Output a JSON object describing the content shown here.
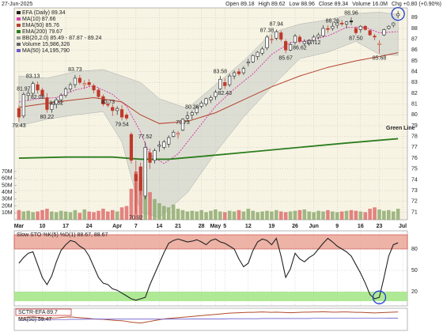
{
  "chart_data": {
    "type": "candlestick",
    "date": "27-Jun-2025",
    "header": [
      "Open 89.18",
      "High 89.62",
      "Low 88.96",
      "Close 89.34",
      "Volume 16.0M",
      "Chg +0.80 (+0.90%)"
    ],
    "legend": [
      "EFA (Daily) 89.34",
      "MA(10) 87.66",
      "EMA(50) 85.76",
      "EMA(200) 79.67",
      "BB(20,2.0) 85.49 - 87.87 - 89.24",
      "Volume 15,986,326",
      "MA(50) 14,195,790"
    ],
    "legend_colors": [
      "#222",
      "#d63fb0",
      "#b5422e",
      "#2e7d1f",
      "#999",
      "#666",
      "#6a5acd"
    ],
    "annotation": "Green Line",
    "ylim": [
      70.3,
      89.9
    ],
    "yticks": [
      71,
      72,
      73,
      74,
      75,
      76,
      77,
      78,
      79,
      80,
      81,
      82,
      83,
      84,
      85,
      86,
      87,
      88,
      89
    ],
    "xlim": [
      -1,
      83
    ],
    "xticks": [
      {
        "value": 0,
        "label": "Mar"
      },
      {
        "value": 5,
        "label": "10"
      },
      {
        "value": 10,
        "label": "17"
      },
      {
        "value": 15,
        "label": "24"
      },
      {
        "value": 21,
        "label": "Apr"
      },
      {
        "value": 25,
        "label": "7"
      },
      {
        "value": 30,
        "label": "14"
      },
      {
        "value": 34,
        "label": "21"
      },
      {
        "value": 39,
        "label": "28"
      },
      {
        "value": 42,
        "label": "May"
      },
      {
        "value": 44,
        "label": "5"
      },
      {
        "value": 49,
        "label": "12"
      },
      {
        "value": 54,
        "label": "19"
      },
      {
        "value": 59,
        "label": "26"
      },
      {
        "value": 63,
        "label": "Jun"
      },
      {
        "value": 68,
        "label": "9"
      },
      {
        "value": 73,
        "label": "16"
      },
      {
        "value": 77,
        "label": "23"
      },
      {
        "value": 82,
        "label": "Jul"
      }
    ],
    "up_color": "#222",
    "down_color": "#c0392b",
    "candles": [
      [
        80.6,
        80.9,
        79.4,
        79.8
      ],
      [
        79.9,
        82.1,
        79.7,
        81.9
      ],
      [
        81.8,
        82.3,
        81.3,
        82.0
      ],
      [
        82.0,
        83.1,
        81.8,
        82.9
      ],
      [
        82.8,
        83.1,
        82.0,
        82.3
      ],
      [
        82.3,
        82.5,
        81.5,
        81.8
      ],
      [
        81.6,
        82.0,
        80.2,
        80.5
      ],
      [
        80.5,
        81.2,
        80.2,
        81.0
      ],
      [
        81.0,
        81.6,
        80.6,
        81.4
      ],
      [
        81.4,
        82.0,
        81.0,
        81.8
      ],
      [
        81.8,
        82.6,
        81.6,
        82.4
      ],
      [
        82.4,
        83.0,
        82.1,
        82.8
      ],
      [
        82.8,
        83.7,
        82.5,
        83.4
      ],
      [
        83.4,
        83.7,
        82.8,
        83.0
      ],
      [
        82.8,
        83.2,
        82.4,
        82.9
      ],
      [
        83.0,
        83.3,
        82.6,
        82.8
      ],
      [
        82.7,
        82.9,
        82.0,
        82.3
      ],
      [
        82.3,
        82.5,
        81.5,
        81.7
      ],
      [
        81.7,
        81.9,
        80.8,
        81.0
      ],
      [
        81.0,
        81.3,
        80.7,
        80.9
      ],
      [
        80.7,
        81.0,
        79.9,
        80.4
      ],
      [
        80.4,
        80.8,
        80.0,
        80.6
      ],
      [
        80.5,
        80.9,
        79.5,
        79.8
      ],
      [
        80.0,
        80.2,
        79.5,
        79.7
      ],
      [
        78.2,
        78.4,
        75.5,
        75.8
      ],
      [
        74.5,
        75.8,
        70.9,
        73.9
      ],
      [
        75.2,
        75.6,
        72.6,
        73.0
      ],
      [
        72.5,
        77.5,
        72.2,
        77.0
      ],
      [
        76.5,
        76.9,
        75.0,
        75.6
      ],
      [
        75.8,
        76.9,
        75.5,
        76.7
      ],
      [
        77.1,
        77.6,
        76.6,
        77.2
      ],
      [
        77.0,
        77.7,
        76.8,
        77.5
      ],
      [
        77.3,
        78.1,
        77.0,
        77.9
      ],
      [
        78.0,
        78.6,
        77.9,
        78.4
      ],
      [
        78.2,
        78.5,
        77.8,
        78.3
      ],
      [
        78.6,
        79.7,
        78.5,
        79.6
      ],
      [
        79.7,
        80.3,
        79.4,
        79.9
      ],
      [
        80.0,
        80.4,
        79.6,
        80.2
      ],
      [
        80.2,
        80.8,
        80.0,
        80.7
      ],
      [
        80.8,
        81.3,
        80.6,
        81.1
      ],
      [
        81.0,
        81.6,
        80.8,
        81.5
      ],
      [
        81.4,
        81.8,
        81.1,
        81.6
      ],
      [
        81.7,
        82.3,
        81.4,
        82.1
      ],
      [
        82.4,
        83.6,
        82.3,
        83.3
      ],
      [
        83.0,
        83.4,
        82.4,
        82.7
      ],
      [
        82.8,
        83.8,
        82.6,
        83.6
      ],
      [
        83.6,
        84.1,
        83.3,
        83.9
      ],
      [
        84.0,
        84.3,
        83.6,
        83.8
      ],
      [
        83.9,
        84.5,
        83.7,
        84.3
      ],
      [
        84.8,
        85.2,
        84.5,
        84.9
      ],
      [
        84.9,
        85.6,
        84.8,
        85.5
      ],
      [
        85.4,
        85.9,
        85.1,
        85.8
      ],
      [
        85.7,
        86.3,
        85.5,
        86.1
      ],
      [
        86.2,
        87.4,
        86.0,
        87.2
      ],
      [
        87.0,
        87.4,
        86.6,
        87.0
      ],
      [
        87.1,
        87.9,
        86.9,
        87.7
      ],
      [
        87.6,
        87.8,
        86.8,
        87.0
      ],
      [
        86.8,
        87.0,
        85.7,
        86.0
      ],
      [
        86.0,
        86.7,
        85.9,
        86.5
      ],
      [
        86.7,
        87.5,
        86.5,
        87.3
      ],
      [
        87.2,
        87.4,
        86.6,
        86.8
      ],
      [
        86.6,
        87.0,
        86.4,
        86.8
      ],
      [
        86.6,
        87.0,
        86.4,
        86.9
      ],
      [
        86.9,
        87.4,
        86.6,
        87.2
      ],
      [
        87.2,
        87.6,
        87.0,
        87.4
      ],
      [
        87.3,
        88.3,
        87.2,
        88.0
      ],
      [
        88.0,
        88.3,
        87.6,
        87.9
      ],
      [
        88.0,
        88.5,
        87.8,
        88.2
      ],
      [
        88.3,
        88.7,
        88.0,
        88.5
      ],
      [
        88.5,
        88.8,
        88.2,
        88.4
      ],
      [
        88.4,
        88.7,
        88.0,
        88.6
      ],
      [
        88.7,
        89.0,
        88.3,
        88.6
      ],
      [
        88.0,
        88.2,
        87.4,
        87.6
      ],
      [
        87.9,
        88.3,
        87.6,
        88.2
      ],
      [
        88.2,
        88.3,
        87.8,
        87.9
      ],
      [
        87.8,
        87.9,
        87.3,
        87.4
      ],
      [
        87.3,
        87.5,
        86.9,
        87.2
      ],
      [
        86.5,
        86.9,
        85.7,
        86.6
      ],
      [
        87.4,
        88.0,
        87.3,
        87.9
      ],
      [
        88.0,
        88.3,
        87.9,
        88.2
      ],
      [
        88.3,
        88.6,
        88.1,
        88.5
      ],
      [
        89.18,
        89.62,
        88.96,
        89.34
      ]
    ],
    "price_labels": {
      "x": [
        0,
        1,
        3,
        4,
        6,
        8,
        12,
        19,
        22,
        25,
        27,
        35,
        37,
        43,
        44,
        53,
        55,
        57,
        60,
        63,
        67,
        71,
        72,
        77
      ],
      "values": [
        79.43,
        81.97,
        83.13,
        82.08,
        80.22,
        81.52,
        83.73,
        80.73,
        79.54,
        70.92,
        77.52,
        79.73,
        80.28,
        83.58,
        82.43,
        87.38,
        87.94,
        85.67,
        86.62,
        87.12,
        88.26,
        88.96,
        87.5,
        85.68
      ],
      "value_labels": [
        "79.43",
        "81.97",
        "83.13",
        "82.08",
        "80.22",
        "81.52",
        "83.73",
        "80.73",
        "79.54",
        "70.92",
        "77.52",
        "79.73",
        "80.28",
        "83.58",
        "82.43",
        "87.38",
        "87.94",
        "85.67",
        "86.62",
        "87.12",
        "88.26",
        "88.96",
        "87.50",
        "85.68"
      ],
      "above": [
        false,
        true,
        true,
        false,
        false,
        false,
        true,
        true,
        false,
        false,
        true,
        false,
        true,
        true,
        false,
        true,
        true,
        false,
        false,
        false,
        true,
        true,
        false,
        false
      ]
    },
    "bands": {
      "x": [
        0,
        6,
        12,
        18,
        22,
        26,
        30,
        36,
        42,
        48,
        54,
        60,
        66,
        72,
        77,
        81
      ],
      "upper": [
        83.6,
        83.4,
        84.0,
        84.2,
        83.6,
        83.0,
        81.5,
        80.6,
        82.8,
        85.0,
        87.6,
        88.4,
        88.8,
        89.4,
        89.5,
        89.3
      ],
      "lower": [
        79.0,
        79.6,
        80.0,
        80.3,
        77.5,
        71.0,
        70.5,
        72.8,
        76.5,
        79.8,
        82.6,
        85.2,
        85.8,
        86.8,
        85.6,
        85.5
      ],
      "color": "#c8ccc4"
    },
    "lines": [
      {
        "name": "MA(10)",
        "color": "#d63fb0",
        "dash": true,
        "x": [
          0,
          4,
          8,
          12,
          16,
          20,
          23,
          26,
          28,
          31,
          34,
          38,
          42,
          46,
          50,
          54,
          58,
          62,
          66,
          70,
          74,
          77,
          81
        ],
        "values": [
          81.2,
          81.5,
          81.6,
          82.3,
          82.7,
          81.9,
          80.8,
          78.4,
          76.3,
          75.5,
          76.4,
          78.6,
          80.8,
          82.4,
          83.8,
          85.6,
          86.7,
          86.9,
          87.3,
          88.1,
          88.1,
          87.6,
          87.7
        ]
      },
      {
        "name": "EMA(50)",
        "color": "#b5422e",
        "dash": false,
        "x": [
          0,
          8,
          16,
          22,
          26,
          30,
          36,
          42,
          48,
          54,
          60,
          66,
          72,
          77,
          81
        ],
        "values": [
          80.7,
          81.2,
          81.6,
          81.2,
          80.0,
          79.2,
          79.4,
          80.2,
          81.4,
          82.6,
          83.6,
          84.4,
          85.0,
          85.4,
          85.76
        ]
      },
      {
        "name": "EMA(200)",
        "color": "#2e7d1f",
        "dash": false,
        "x": [
          0,
          10,
          20,
          26,
          32,
          40,
          50,
          60,
          70,
          81
        ],
        "values": [
          76.0,
          76.1,
          76.1,
          75.9,
          75.9,
          76.2,
          76.6,
          77.0,
          77.4,
          77.8
        ]
      }
    ],
    "volume": {
      "values": [
        14,
        12,
        13,
        11,
        12,
        14,
        16,
        12,
        11,
        13,
        12,
        11,
        14,
        10,
        15,
        12,
        11,
        13,
        16,
        12,
        14,
        12,
        18,
        20,
        45,
        70,
        62,
        58,
        40,
        30,
        24,
        20,
        18,
        22,
        16,
        14,
        12,
        13,
        12,
        14,
        11,
        13,
        15,
        12,
        11,
        13,
        12,
        14,
        12,
        16,
        13,
        11,
        12,
        13,
        12,
        14,
        12,
        11,
        12,
        13,
        14,
        15,
        12,
        11,
        13,
        12,
        14,
        12,
        11,
        12,
        13,
        14,
        13,
        12,
        11,
        16,
        18,
        15,
        13,
        14,
        12,
        16
      ],
      "ylim": [
        0,
        78
      ],
      "yticks": [
        {
          "value": 10,
          "label": "10M"
        },
        {
          "value": 20,
          "label": "20M"
        },
        {
          "value": 30,
          "label": "30M"
        },
        {
          "value": 40,
          "label": "40M"
        },
        {
          "value": 50,
          "label": "50M"
        },
        {
          "value": 60,
          "label": "60M"
        },
        {
          "value": 70,
          "label": "70M"
        }
      ],
      "color": "#8aa86a"
    },
    "stochastic": {
      "title": "Slow STO %K(5) %D(1) 88.67, 88.67",
      "color": "#222",
      "ylim": [
        0,
        100
      ],
      "yticks": [
        20,
        50,
        80
      ],
      "values": [
        60,
        68,
        74,
        76,
        58,
        40,
        30,
        42,
        62,
        78,
        86,
        92,
        90,
        84,
        80,
        70,
        55,
        40,
        32,
        30,
        24,
        22,
        18,
        14,
        10,
        8,
        10,
        12,
        30,
        45,
        60,
        75,
        88,
        92,
        94,
        92,
        90,
        91,
        93,
        90,
        86,
        92,
        94,
        90,
        88,
        84,
        80,
        66,
        55,
        60,
        78,
        90,
        94,
        92,
        86,
        95,
        70,
        40,
        52,
        74,
        66,
        62,
        68,
        72,
        80,
        88,
        95,
        90,
        84,
        80,
        76,
        70,
        58,
        46,
        32,
        16,
        10,
        12,
        40,
        70,
        86,
        88.67
      ]
    },
    "sctr": {
      "title": "SCTR-EFA 89.7",
      "ma_title": "MA(50) 59.47",
      "values": [
        62,
        60,
        64,
        66,
        63,
        60,
        58,
        60,
        61,
        63,
        65,
        66,
        64,
        62,
        60,
        58,
        56,
        55,
        54,
        52,
        50,
        48,
        47,
        44,
        40,
        38,
        36,
        40,
        44,
        48,
        52,
        56,
        58,
        60,
        62,
        64,
        66,
        68,
        70,
        72,
        74,
        76,
        78,
        80,
        82,
        84,
        85,
        86,
        87,
        88,
        88,
        89,
        90,
        89,
        88,
        89,
        88,
        87,
        86,
        87,
        88,
        89,
        89,
        90,
        90,
        91,
        90,
        89,
        89,
        90,
        90,
        89,
        88,
        88,
        87,
        86,
        85,
        86,
        87,
        88,
        89,
        89.7
      ],
      "ma": [
        50,
        50,
        51,
        51,
        51,
        52,
        52,
        52,
        53,
        53,
        53,
        54,
        54,
        54,
        54,
        55,
        55,
        55,
        55,
        55,
        55,
        55,
        55,
        55,
        55,
        55,
        55,
        55,
        55,
        55,
        55,
        55,
        55,
        55,
        55,
        55,
        55,
        56,
        56,
        56,
        56,
        56,
        56,
        56,
        56,
        57,
        57,
        57,
        57,
        57,
        57,
        57,
        58,
        58,
        58,
        58,
        58,
        58,
        58,
        58,
        58,
        58,
        58,
        59,
        59,
        59,
        59,
        59,
        59,
        59,
        59,
        59,
        59,
        59,
        59,
        59,
        59,
        59,
        59.2,
        59.3,
        59.4,
        59.47
      ],
      "ylim": [
        0,
        100
      ],
      "color": "#b04a2a",
      "ma_color": "#6a5acd"
    }
  }
}
